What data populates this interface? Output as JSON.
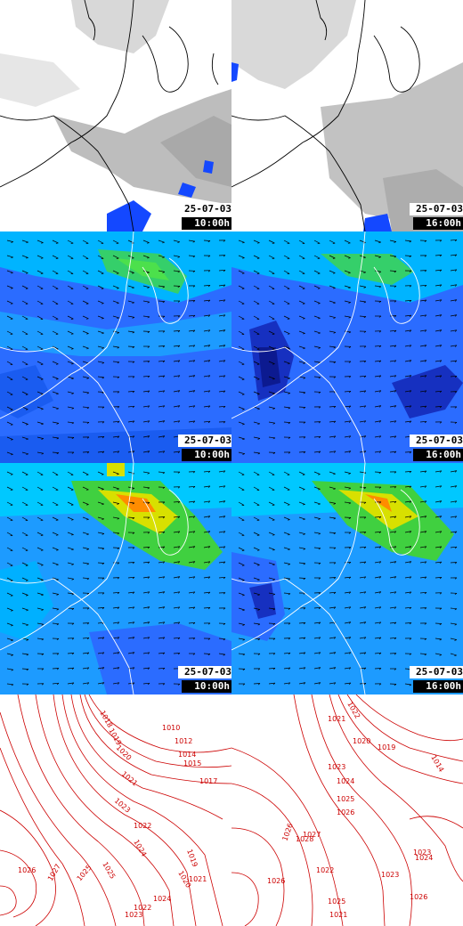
{
  "panels": [
    {
      "id": "cloud",
      "date": "25-07-03",
      "times": [
        "10:00h",
        "16:00h"
      ]
    },
    {
      "id": "wind-mean",
      "date": "25-07-03",
      "times": [
        "10:00h",
        "16:00h"
      ]
    },
    {
      "id": "wind-gust",
      "date": "25-07-03",
      "times": [
        "10:00h",
        "16:00h"
      ]
    }
  ],
  "pressure": {
    "left_labels": [
      "1018",
      "1019",
      "1010",
      "1012",
      "1020",
      "1014",
      "1015",
      "1021",
      "1017",
      "1023",
      "1022",
      "1024",
      "1019",
      "1025",
      "1020",
      "1021",
      "1026",
      "1027",
      "1025",
      "1023",
      "1022",
      "1024"
    ],
    "right_labels": [
      "1022",
      "1021",
      "1020",
      "1019",
      "1014",
      "1023",
      "1024",
      "1025",
      "1026",
      "1027",
      "1026",
      "1028",
      "1023",
      "1024",
      "1023",
      "1022",
      "1026",
      "1025",
      "1021",
      "1026"
    ]
  },
  "colors": {
    "land": "#ffffff",
    "coast_dark": "#000000",
    "coast_light": "#ffffff",
    "cloud_gray": "#b8b8b8",
    "precip_blue": "#1448ff",
    "wind_blue": "#2b6cff",
    "wind_cyan": "#00c0ff",
    "wind_green": "#40d040",
    "wind_yellow": "#e6e600",
    "wind_orange": "#ff8c00",
    "isobar": "#cc0000"
  }
}
